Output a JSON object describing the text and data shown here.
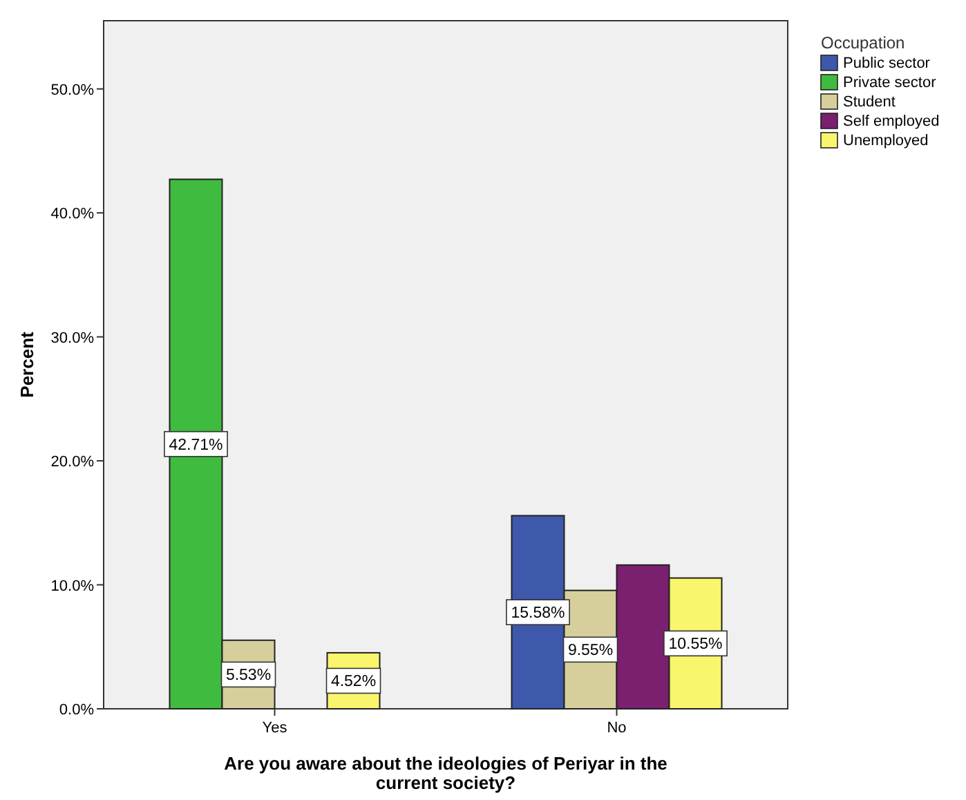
{
  "chart_data": {
    "type": "bar",
    "xlabel": "Are you aware about the ideologies of Periyar in the current society?",
    "ylabel": "Percent",
    "legend_title": "Occupation",
    "legend": "top right",
    "categories": [
      "Yes",
      "No"
    ],
    "series": [
      {
        "name": "Public sector",
        "color": "#3e58ac",
        "values": [
          null,
          15.58
        ],
        "value_labels": [
          null,
          "15.58%"
        ]
      },
      {
        "name": "Private sector",
        "color": "#3fbb3f",
        "values": [
          42.71,
          null
        ],
        "value_labels": [
          "42.71%",
          null
        ]
      },
      {
        "name": "Student",
        "color": "#d6cf9c",
        "values": [
          5.53,
          9.55
        ],
        "value_labels": [
          "5.53%",
          "9.55%"
        ]
      },
      {
        "name": "Self employed",
        "color": "#7b1f6f",
        "values": [
          0,
          11.6
        ],
        "value_labels": [
          null,
          null
        ]
      },
      {
        "name": "Unemployed",
        "color": "#f9f56c",
        "values": [
          4.52,
          10.55
        ],
        "value_labels": [
          "4.52%",
          "10.55%"
        ]
      }
    ],
    "ylim": [
      0,
      55.5
    ],
    "yticks": [
      {
        "value": 0,
        "label": "0.0%"
      },
      {
        "value": 10,
        "label": "10.0%"
      },
      {
        "value": 20,
        "label": "20.0%"
      },
      {
        "value": 30,
        "label": "30.0%"
      },
      {
        "value": 40,
        "label": "40.0%"
      },
      {
        "value": 50,
        "label": "50.0%"
      }
    ]
  }
}
